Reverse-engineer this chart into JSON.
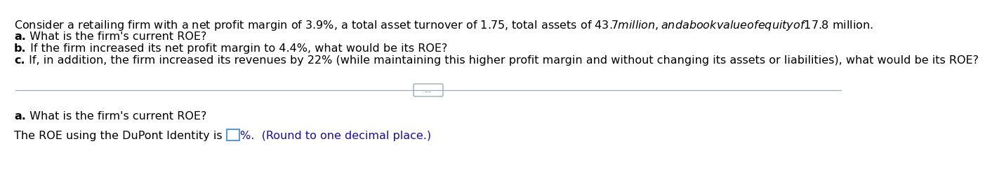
{
  "bg_color": "#ffffff",
  "line1": "Consider a retailing firm with a net profit margin of 3.9%, a total asset turnover of 1.75, total assets of $43.7 million, and a book value of equity of $17.8 million.",
  "line2_bold": "a.",
  "line2_rest": " What is the firm's current ROE?",
  "line3_bold": "b.",
  "line3_rest": " If the firm increased its net profit margin to 4.4%, what would be its ROE?",
  "line4_bold": "c.",
  "line4_rest": " If, in addition, the firm increased its revenues by 22% (while maintaining this higher profit margin and without changing its assets or liabilities), what would be its ROE?",
  "divider_dots": "...",
  "bottom_title_bold": "a.",
  "bottom_title_rest": " What is the firm's current ROE?",
  "bottom_prefix": "The ROE using the DuPont Identity is ",
  "bottom_suffix": "%.  (Round to one decimal place.)",
  "font_size": 11.5,
  "text_color": "#000000",
  "blue_color": "#1a0dab",
  "line_color": "#9eaab7",
  "box_edge_color": "#5b9bd5",
  "dots_box_color": "#9eaab7"
}
